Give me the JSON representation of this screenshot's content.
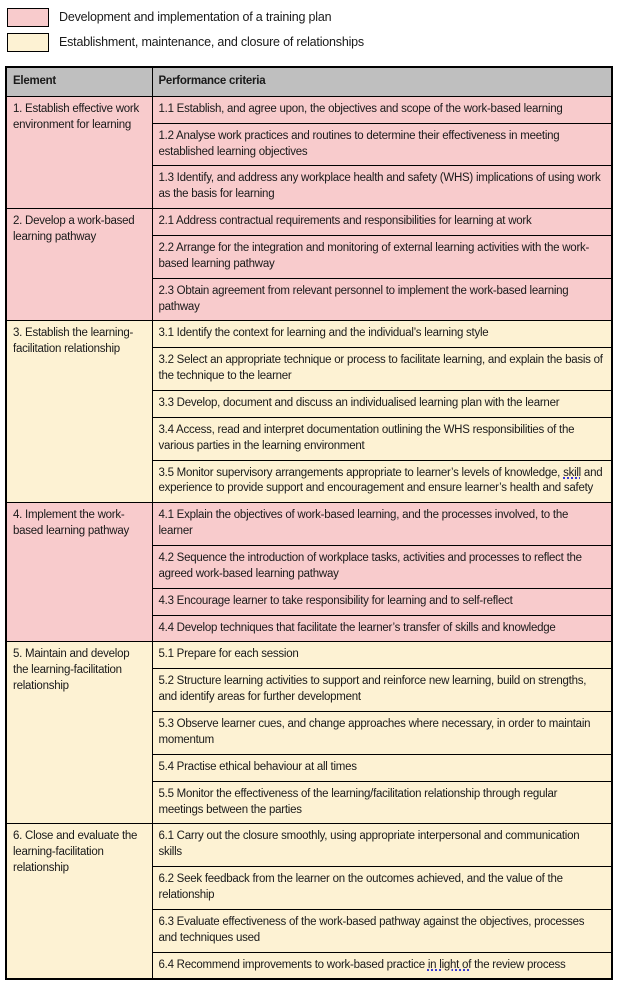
{
  "legend": [
    {
      "key": "training",
      "label": "Development and implementation of a training plan",
      "color": "#F8CBCC"
    },
    {
      "key": "relationships",
      "label": "Establishment, maintenance, and closure of relationships",
      "color": "#FDF2D3"
    }
  ],
  "table": {
    "header_bg": "#BFBFBF",
    "headers": [
      "Element",
      "Performance criteria"
    ],
    "rows": [
      {
        "element": "1. Establish effective work environment for learning",
        "category": "training",
        "criteria": [
          {
            "text": "1.1 Establish, and agree upon, the objectives and scope of the work-based learning"
          },
          {
            "text": "1.2 Analyse work practices and routines to determine their effectiveness in meeting established learning objectives"
          },
          {
            "text": "1.3 Identify, and address any workplace health and safety (WHS) implications of using work as the basis for learning"
          }
        ]
      },
      {
        "element": "2. Develop a work-based learning pathway",
        "category": "training",
        "criteria": [
          {
            "text": "2.1 Address contractual requirements and responsibilities for learning at work"
          },
          {
            "text": "2.2 Arrange for the integration and monitoring of external learning activities with the work-based learning pathway"
          },
          {
            "text": "2.3 Obtain agreement from relevant personnel to implement the work-based learning pathway"
          }
        ]
      },
      {
        "element": "3. Establish the learning-facilitation relationship",
        "category": "relationships",
        "criteria": [
          {
            "text": "3.1 Identify the context for learning and the individual’s learning style"
          },
          {
            "text": "3.2 Select an appropriate technique or process to facilitate learning, and explain the basis of the technique to the learner"
          },
          {
            "text": "3.3 Develop, document and discuss an individualised learning plan with the learner"
          },
          {
            "text": "3.4 Access, read and interpret documentation outlining the WHS responsibilities of the various parties in the learning environment"
          },
          {
            "text": "3.5 Monitor supervisory arrangements appropriate to learner’s levels of knowledge, skill and experience to provide support and encouragement and ensure learner’s health and safety",
            "underlined_phrase": "skill"
          }
        ]
      },
      {
        "element": "4. Implement the work-based learning pathway",
        "category": "training",
        "criteria": [
          {
            "text": "4.1 Explain the objectives of work-based learning, and the processes involved, to the learner"
          },
          {
            "text": "4.2 Sequence the introduction of workplace tasks, activities and processes to reflect the agreed work-based learning pathway"
          },
          {
            "text": "4.3 Encourage learner to take responsibility for learning and to self-reflect"
          },
          {
            "text": "4.4 Develop techniques that facilitate the learner’s transfer of skills and knowledge"
          }
        ]
      },
      {
        "element": "5. Maintain and develop the learning-facilitation relationship",
        "category": "relationships",
        "criteria": [
          {
            "text": "5.1 Prepare for each session"
          },
          {
            "text": "5.2 Structure learning activities to support and reinforce new learning, build on strengths, and identify areas for further development"
          },
          {
            "text": "5.3 Observe learner cues, and change approaches where necessary, in order to maintain momentum"
          },
          {
            "text": "5.4 Practise ethical behaviour at all times"
          },
          {
            "text": "5.5 Monitor the effectiveness of the learning/facilitation relationship through regular meetings between the parties"
          }
        ]
      },
      {
        "element": "6. Close and evaluate the learning-facilitation relationship",
        "category": "relationships",
        "criteria": [
          {
            "text": "6.1 Carry out the closure smoothly, using appropriate interpersonal and communication skills"
          },
          {
            "text": "6.2 Seek feedback from the learner on the outcomes achieved, and the value of the relationship"
          },
          {
            "text": "6.3 Evaluate effectiveness of the work-based pathway against the objectives, processes and techniques used"
          },
          {
            "text": "6.4 Recommend improvements to work-based practice in light of the review process",
            "underlined_phrase": "in light of"
          }
        ]
      }
    ]
  }
}
